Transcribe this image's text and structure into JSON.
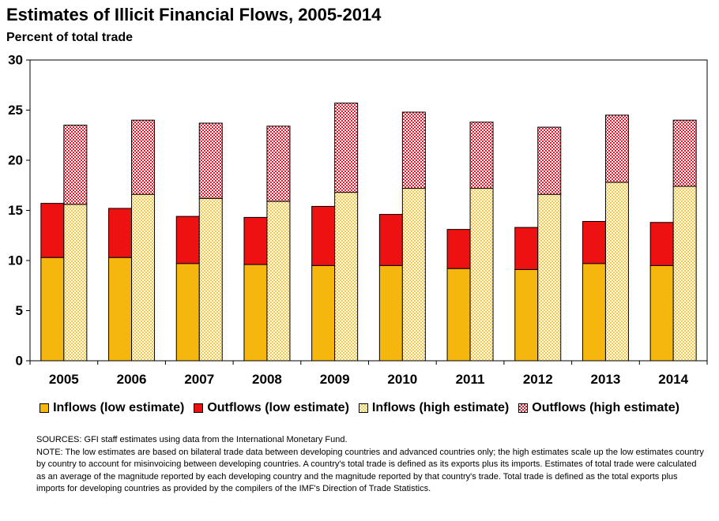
{
  "title": "Estimates of Illicit Financial Flows, 2005-2014",
  "subtitle": "Percent of total trade",
  "chart_data": {
    "type": "bar",
    "stacked": true,
    "title": "Estimates of Illicit Financial Flows, 2005-2014",
    "subtitle": "Percent of total trade",
    "categories": [
      "2005",
      "2006",
      "2007",
      "2008",
      "2009",
      "2010",
      "2011",
      "2012",
      "2013",
      "2014"
    ],
    "ylim": [
      0,
      30
    ],
    "yticks": [
      0,
      5,
      10,
      15,
      20,
      25,
      30
    ],
    "grid": false,
    "legend_position": "bottom",
    "groups": [
      {
        "stack": "low",
        "series": [
          {
            "name": "Inflows (low estimate)",
            "color": "#F5B60D",
            "pattern": "solid",
            "values": [
              10.3,
              10.3,
              9.7,
              9.6,
              9.5,
              9.5,
              9.2,
              9.1,
              9.7,
              9.5
            ]
          },
          {
            "name": "Outflows (low estimate)",
            "color": "#EE1111",
            "pattern": "solid",
            "values": [
              5.4,
              4.9,
              4.7,
              4.7,
              5.9,
              5.1,
              3.9,
              4.2,
              4.2,
              4.3
            ]
          }
        ]
      },
      {
        "stack": "high",
        "series": [
          {
            "name": "Inflows (high estimate)",
            "color": "#F5C842",
            "pattern": "checker",
            "values": [
              15.6,
              16.6,
              16.2,
              15.9,
              16.8,
              17.2,
              17.2,
              16.6,
              17.8,
              17.4
            ]
          },
          {
            "name": "Outflows (high estimate)",
            "color": "#E01A2E",
            "pattern": "checker",
            "values": [
              7.9,
              7.4,
              7.5,
              7.5,
              8.9,
              7.6,
              6.6,
              6.7,
              6.7,
              6.6
            ]
          }
        ]
      }
    ]
  },
  "legend": [
    {
      "label": "Inflows (low estimate)",
      "color": "#F5B60D",
      "pattern": "solid"
    },
    {
      "label": "Outflows (low estimate)",
      "color": "#EE1111",
      "pattern": "solid"
    },
    {
      "label": "Inflows (high estimate)",
      "color": "#F5C842",
      "pattern": "checker"
    },
    {
      "label": "Outflows (high estimate)",
      "color": "#E01A2E",
      "pattern": "checker"
    }
  ],
  "sources": "SOURCES: GFI staff estimates using data from the International Monetary Fund.",
  "note": "NOTE: The low estimates are based on bilateral trade data between developing countries and advanced countries only; the high estimates scale up the low estimates country by country to account for misinvoicing between developing countries.  A country's total trade is defined as its exports plus its imports.  Estimates of total trade were calculated as an average of the magnitude reported by each developing country and the magnitude reported by that country's trade. Total trade is defined as the total exports plus imports for developing countries as provided by the compilers of the IMF's Direction of Trade Statistics."
}
